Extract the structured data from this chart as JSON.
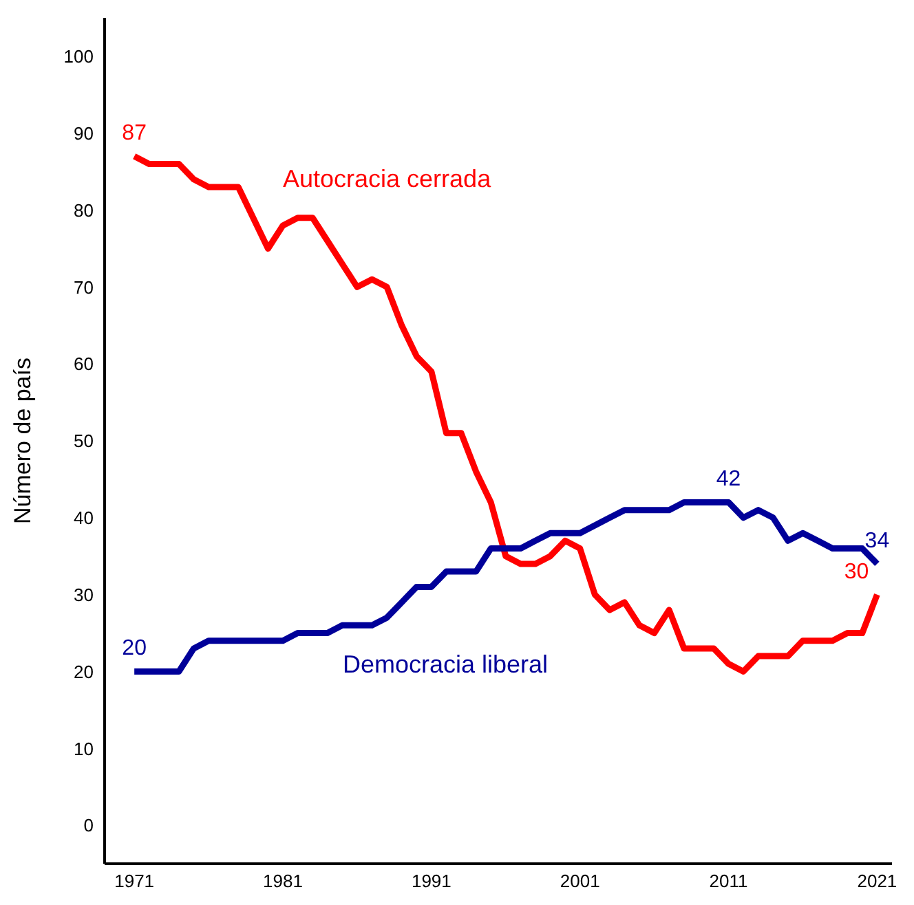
{
  "chart_data": {
    "type": "line",
    "ylabel": "Número de país",
    "x": [
      1971,
      1972,
      1973,
      1974,
      1975,
      1976,
      1977,
      1978,
      1979,
      1980,
      1981,
      1982,
      1983,
      1984,
      1985,
      1986,
      1987,
      1988,
      1989,
      1990,
      1991,
      1992,
      1993,
      1994,
      1995,
      1996,
      1997,
      1998,
      1999,
      2000,
      2001,
      2002,
      2003,
      2004,
      2005,
      2006,
      2007,
      2008,
      2009,
      2010,
      2011,
      2012,
      2013,
      2014,
      2015,
      2016,
      2017,
      2018,
      2019,
      2020,
      2021
    ],
    "series": [
      {
        "name": "Autocracia cerrada",
        "color": "#ff0000",
        "values": [
          87,
          86,
          86,
          86,
          84,
          83,
          83,
          83,
          79,
          75,
          78,
          79,
          79,
          76,
          73,
          70,
          71,
          70,
          65,
          61,
          59,
          51,
          51,
          46,
          42,
          35,
          34,
          34,
          35,
          37,
          36,
          30,
          28,
          29,
          26,
          25,
          28,
          23,
          23,
          23,
          21,
          20,
          22,
          22,
          22,
          24,
          24,
          24,
          25,
          25,
          30
        ],
        "value_labels": [
          "87",
          null,
          null,
          null,
          null,
          null,
          null,
          null,
          null,
          null,
          null,
          null,
          null,
          null,
          null,
          null,
          null,
          null,
          null,
          null,
          null,
          null,
          null,
          null,
          null,
          null,
          null,
          null,
          null,
          null,
          null,
          null,
          null,
          null,
          null,
          null,
          null,
          null,
          null,
          null,
          null,
          null,
          null,
          null,
          null,
          null,
          null,
          null,
          null,
          null,
          "30"
        ]
      },
      {
        "name": "Democracia liberal",
        "color": "#000099",
        "values": [
          20,
          20,
          20,
          20,
          23,
          24,
          24,
          24,
          24,
          24,
          24,
          25,
          25,
          25,
          26,
          26,
          26,
          27,
          29,
          31,
          31,
          33,
          33,
          33,
          36,
          36,
          36,
          37,
          38,
          38,
          38,
          39,
          40,
          41,
          41,
          41,
          41,
          42,
          42,
          42,
          42,
          40,
          41,
          40,
          37,
          38,
          37,
          36,
          36,
          36,
          34
        ],
        "value_labels": [
          "20",
          null,
          null,
          null,
          null,
          null,
          null,
          null,
          null,
          null,
          null,
          null,
          null,
          null,
          null,
          null,
          null,
          null,
          null,
          null,
          null,
          null,
          null,
          null,
          null,
          null,
          null,
          null,
          null,
          null,
          null,
          null,
          null,
          null,
          null,
          null,
          null,
          null,
          null,
          null,
          "42",
          null,
          null,
          null,
          null,
          null,
          null,
          null,
          null,
          null,
          "34"
        ]
      }
    ],
    "xlim": [
      1969,
      2022
    ],
    "xticks": [
      1971,
      1981,
      1991,
      2001,
      2011,
      2021
    ],
    "ylim": [
      -5,
      105
    ],
    "yticks": [
      0,
      10,
      20,
      30,
      40,
      50,
      60,
      70,
      80,
      90,
      100
    ],
    "grid": false,
    "legend": false,
    "marker": "none",
    "line_style": "solid"
  }
}
